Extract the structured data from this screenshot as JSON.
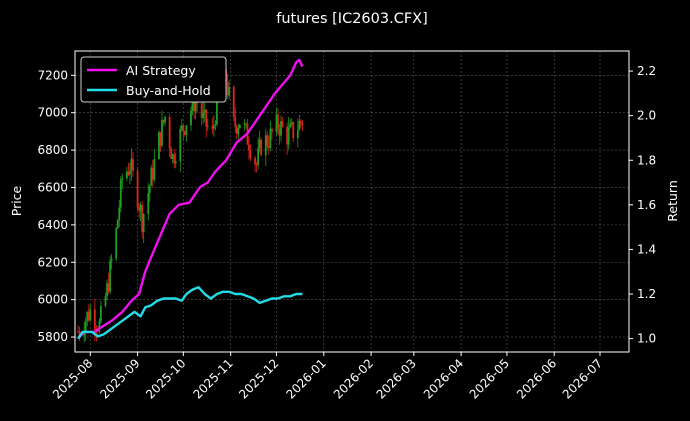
{
  "chart_data": {
    "type": "candlestick+line",
    "title": "futures [IC2603.CFX]",
    "xlabel": "",
    "ylabel_left": "Price",
    "ylabel_right": "Return",
    "x_ticks": [
      "2025-08",
      "2025-09",
      "2025-10",
      "2025-11",
      "2025-12",
      "2026-01",
      "2026-02",
      "2026-03",
      "2026-04",
      "2026-05",
      "2026-06",
      "2026-07"
    ],
    "x_range": [
      "2025-07-22",
      "2026-07-20"
    ],
    "price_ticks": [
      5800,
      6000,
      6200,
      6400,
      6600,
      6800,
      7000,
      7200
    ],
    "price_range": [
      5720,
      7330
    ],
    "return_ticks": [
      1.0,
      1.2,
      1.4,
      1.6,
      1.8,
      2.0,
      2.2
    ],
    "return_range": [
      0.94,
      2.29
    ],
    "grid": true,
    "legend_position": "top-left",
    "colors": {
      "background": "#000000",
      "up": "#1f9e1f",
      "down": "#e0241b",
      "ai": "#ee10ee",
      "bh": "#22dde8",
      "grid": "#5a5a5a"
    },
    "candles_start": "2025-07-24",
    "candles_end": "2025-12-18",
    "candle_anchors": [
      [
        "2025-07-24",
        5830
      ],
      [
        "2025-08-01",
        5940
      ],
      [
        "2025-08-07",
        5860
      ],
      [
        "2025-08-12",
        6050
      ],
      [
        "2025-08-18",
        6360
      ],
      [
        "2025-08-22",
        6650
      ],
      [
        "2025-08-27",
        6720
      ],
      [
        "2025-09-01",
        6560
      ],
      [
        "2025-09-04",
        6430
      ],
      [
        "2025-09-10",
        6650
      ],
      [
        "2025-09-15",
        6850
      ],
      [
        "2025-09-19",
        6980
      ],
      [
        "2025-09-24",
        6760
      ],
      [
        "2025-09-29",
        6880
      ],
      [
        "2025-10-09",
        7080
      ],
      [
        "2025-10-14",
        6960
      ],
      [
        "2025-10-20",
        6880
      ],
      [
        "2025-10-24",
        7120
      ],
      [
        "2025-10-29",
        7180
      ],
      [
        "2025-11-03",
        6930
      ],
      [
        "2025-11-07",
        6960
      ],
      [
        "2025-11-13",
        6850
      ],
      [
        "2025-11-18",
        6720
      ],
      [
        "2025-11-21",
        6830
      ],
      [
        "2025-11-26",
        6860
      ],
      [
        "2025-12-02",
        6940
      ],
      [
        "2025-12-08",
        6880
      ],
      [
        "2025-12-12",
        6900
      ],
      [
        "2025-12-18",
        6960
      ]
    ],
    "series": [
      {
        "name": "AI Strategy",
        "points": [
          [
            "2025-07-24",
            1.0
          ],
          [
            "2025-07-28",
            1.03
          ],
          [
            "2025-08-04",
            1.03
          ],
          [
            "2025-08-08",
            1.05
          ],
          [
            "2025-08-15",
            1.08
          ],
          [
            "2025-08-22",
            1.12
          ],
          [
            "2025-08-28",
            1.17
          ],
          [
            "2025-09-02",
            1.2
          ],
          [
            "2025-09-06",
            1.3
          ],
          [
            "2025-09-12",
            1.4
          ],
          [
            "2025-09-17",
            1.48
          ],
          [
            "2025-09-22",
            1.56
          ],
          [
            "2025-09-28",
            1.6
          ],
          [
            "2025-10-05",
            1.61
          ],
          [
            "2025-10-12",
            1.68
          ],
          [
            "2025-10-17",
            1.7
          ],
          [
            "2025-10-22",
            1.75
          ],
          [
            "2025-10-29",
            1.8
          ],
          [
            "2025-11-05",
            1.88
          ],
          [
            "2025-11-12",
            1.92
          ],
          [
            "2025-11-18",
            1.98
          ],
          [
            "2025-11-24",
            2.04
          ],
          [
            "2025-11-30",
            2.1
          ],
          [
            "2025-12-05",
            2.14
          ],
          [
            "2025-12-10",
            2.18
          ],
          [
            "2025-12-14",
            2.24
          ],
          [
            "2025-12-16",
            2.25
          ],
          [
            "2025-12-18",
            2.22
          ]
        ]
      },
      {
        "name": "Buy-and-Hold",
        "points": [
          [
            "2025-07-24",
            1.0
          ],
          [
            "2025-07-27",
            1.03
          ],
          [
            "2025-08-02",
            1.03
          ],
          [
            "2025-08-06",
            1.01
          ],
          [
            "2025-08-10",
            1.02
          ],
          [
            "2025-08-14",
            1.04
          ],
          [
            "2025-08-18",
            1.06
          ],
          [
            "2025-08-22",
            1.08
          ],
          [
            "2025-08-26",
            1.1
          ],
          [
            "2025-08-30",
            1.12
          ],
          [
            "2025-09-03",
            1.1
          ],
          [
            "2025-09-06",
            1.14
          ],
          [
            "2025-09-10",
            1.15
          ],
          [
            "2025-09-14",
            1.17
          ],
          [
            "2025-09-18",
            1.18
          ],
          [
            "2025-09-22",
            1.18
          ],
          [
            "2025-09-26",
            1.18
          ],
          [
            "2025-09-30",
            1.17
          ],
          [
            "2025-10-03",
            1.2
          ],
          [
            "2025-10-07",
            1.22
          ],
          [
            "2025-10-11",
            1.23
          ],
          [
            "2025-10-15",
            1.2
          ],
          [
            "2025-10-19",
            1.18
          ],
          [
            "2025-10-23",
            1.2
          ],
          [
            "2025-10-27",
            1.21
          ],
          [
            "2025-10-31",
            1.21
          ],
          [
            "2025-11-04",
            1.2
          ],
          [
            "2025-11-08",
            1.2
          ],
          [
            "2025-11-12",
            1.19
          ],
          [
            "2025-11-16",
            1.18
          ],
          [
            "2025-11-20",
            1.16
          ],
          [
            "2025-11-24",
            1.17
          ],
          [
            "2025-11-28",
            1.18
          ],
          [
            "2025-12-02",
            1.18
          ],
          [
            "2025-12-06",
            1.19
          ],
          [
            "2025-12-10",
            1.19
          ],
          [
            "2025-12-14",
            1.2
          ],
          [
            "2025-12-18",
            1.2
          ]
        ]
      }
    ]
  }
}
